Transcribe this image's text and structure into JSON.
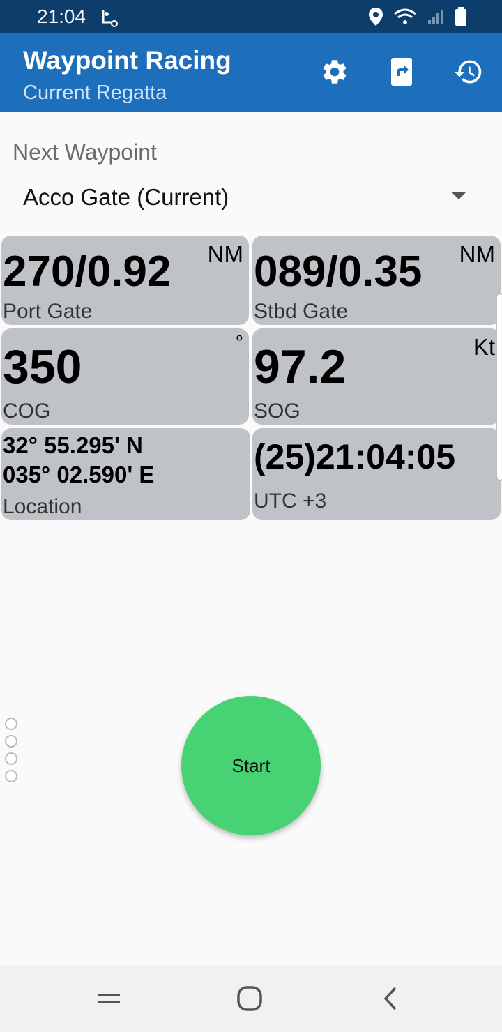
{
  "status_bar": {
    "time": "21:04"
  },
  "app_bar": {
    "title": "Waypoint Racing",
    "subtitle": "Current Regatta",
    "actions": [
      "gear-icon",
      "share-icon",
      "history-icon"
    ]
  },
  "waypoint": {
    "label": "Next Waypoint",
    "selected": "Acco Gate (Current)"
  },
  "tiles": [
    {
      "value": "270/0.92",
      "unit": "NM",
      "label": "Port Gate"
    },
    {
      "value": "089/0.35",
      "unit": "NM",
      "label": "Stbd Gate"
    },
    {
      "value": "350",
      "unit": "°",
      "label": "COG"
    },
    {
      "value": "97.2",
      "unit": "Kt",
      "label": "SOG"
    },
    {
      "value_line1": "32° 55.295' N",
      "value_line2": "035° 02.590' E",
      "label": "Location"
    },
    {
      "value": "(25)21:04:05",
      "label": "UTC +3"
    }
  ],
  "start_button": {
    "label": "Start"
  },
  "colors": {
    "status_bar": "#0d3d6b",
    "app_bar": "#1e6fbb",
    "tile": "#bfc3c8",
    "start": "#47d374"
  }
}
